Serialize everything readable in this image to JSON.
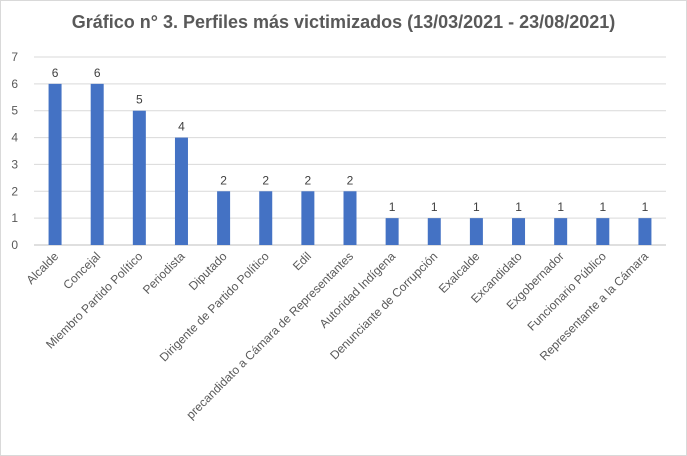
{
  "chart_data": {
    "type": "bar",
    "title": "Gráfico n° 3. Perfiles más victimizados (13/03/2021 - 23/08/2021)",
    "xlabel": "",
    "ylabel": "",
    "ylim": [
      0,
      7
    ],
    "yticks": [
      0,
      1,
      2,
      3,
      4,
      5,
      6,
      7
    ],
    "grid": true,
    "legend": "none",
    "bar_color": "#4472C4",
    "categories": [
      "Alcalde",
      "Concejal",
      "Miembro Partido Político",
      "Periodista",
      "Diputado",
      "Dirigente de Partido Político",
      "Edil",
      "precandidato a Cámara de Representantes",
      "Autoridad Indígena",
      "Denunciante de Corrupción",
      "Exalcalde",
      "Excandidato",
      "Exgobernador",
      "Funcionario Público",
      "Representante a la Cámara"
    ],
    "values": [
      6,
      6,
      5,
      4,
      2,
      2,
      2,
      2,
      1,
      1,
      1,
      1,
      1,
      1,
      1
    ]
  }
}
